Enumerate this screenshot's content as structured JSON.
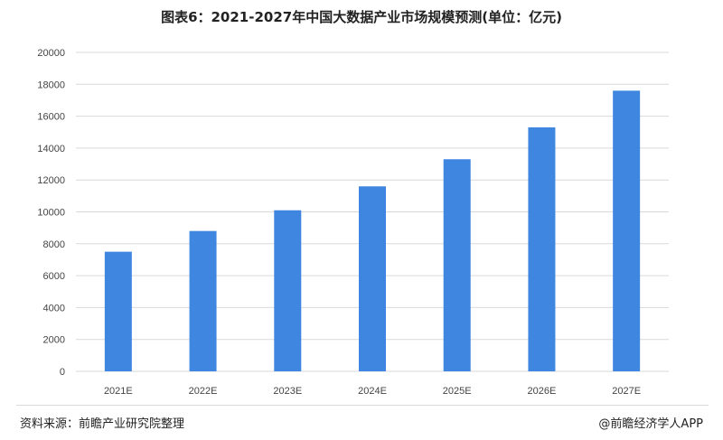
{
  "title": "图表6：2021-2027年中国大数据产业市场规模预测(单位：亿元)",
  "source": "资料来源：前瞻产业研究院整理",
  "brand": "@前瞻经济学人APP",
  "bar_color": "#3f86e0",
  "grid_color": "#d9d9d9",
  "chart_data": {
    "type": "bar",
    "title": "图表6：2021-2027年中国大数据产业市场规模预测(单位：亿元)",
    "xlabel": "",
    "ylabel": "",
    "categories": [
      "2021E",
      "2022E",
      "2023E",
      "2024E",
      "2025E",
      "2026E",
      "2027E"
    ],
    "values": [
      7500,
      8800,
      10100,
      11600,
      13300,
      15300,
      17600
    ],
    "ylim": [
      0,
      20000
    ],
    "yticks": [
      "0",
      "2000",
      "4000",
      "6000",
      "8000",
      "10000",
      "12000",
      "14000",
      "16000",
      "18000",
      "20000"
    ],
    "grid": true,
    "legend": "none"
  }
}
